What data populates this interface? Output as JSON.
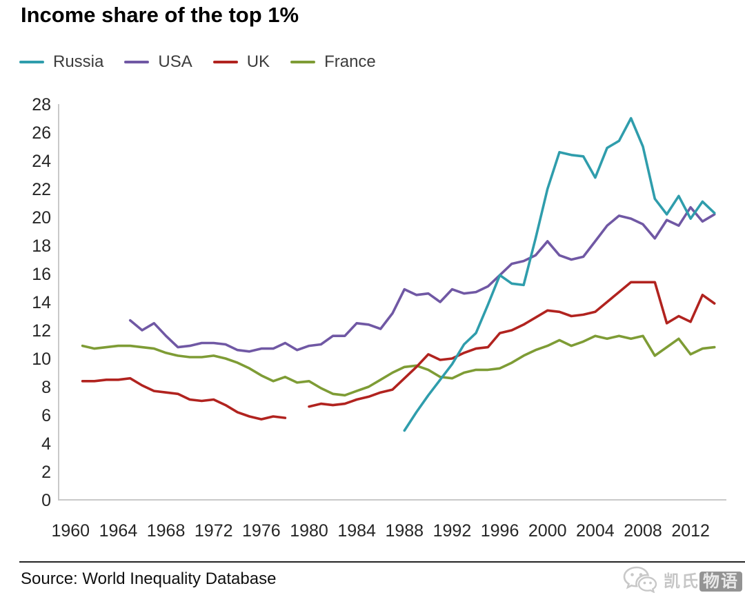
{
  "page": {
    "title": "Income share of the top 1%",
    "source_line": "Source: World Inequality Database",
    "watermark": {
      "icon": "wechat-icon",
      "text_left": "凯氏",
      "text_right": "物语"
    }
  },
  "legend": {
    "items": [
      {
        "label": "Russia",
        "color": "#2f9dac"
      },
      {
        "label": "USA",
        "color": "#7058a4"
      },
      {
        "label": "UK",
        "color": "#b1231f"
      },
      {
        "label": "France",
        "color": "#7e9c35"
      }
    ]
  },
  "chart_data": {
    "type": "line",
    "title": "Income share of the top 1%",
    "xlabel": "",
    "ylabel": "",
    "grid": false,
    "legend_position": "top-left",
    "axis_color": "#c9c9c9",
    "tick_color": "#262626",
    "xlim": [
      1959,
      2015
    ],
    "ylim": [
      0,
      28
    ],
    "x_tick_labels": [
      1960,
      1964,
      1968,
      1972,
      1976,
      1980,
      1984,
      1988,
      1992,
      1996,
      2000,
      2004,
      2008,
      2012
    ],
    "y_tick_labels": [
      0,
      2,
      4,
      6,
      8,
      10,
      12,
      14,
      16,
      18,
      20,
      22,
      24,
      26,
      28
    ],
    "series": [
      {
        "name": "Russia",
        "color": "#2f9dac",
        "start_year": 1988,
        "values": [
          4.9,
          6.2,
          7.4,
          8.5,
          9.6,
          11.0,
          11.8,
          13.8,
          15.9,
          15.3,
          15.2,
          18.5,
          22.0,
          24.6,
          24.4,
          24.3,
          22.8,
          24.9,
          25.4,
          27.0,
          25.0,
          21.3,
          20.2,
          21.5,
          19.9,
          21.1,
          20.3
        ]
      },
      {
        "name": "USA",
        "color": "#7058a4",
        "start_year": 1965,
        "values": [
          12.7,
          12.0,
          12.5,
          11.6,
          10.8,
          10.9,
          11.1,
          11.1,
          11.0,
          10.6,
          10.5,
          10.7,
          10.7,
          11.1,
          10.6,
          10.9,
          11.0,
          11.6,
          11.6,
          12.5,
          12.4,
          12.1,
          13.2,
          14.9,
          14.5,
          14.6,
          14.0,
          14.9,
          14.6,
          14.7,
          15.1,
          15.9,
          16.7,
          16.9,
          17.3,
          18.3,
          17.3,
          17.0,
          17.2,
          18.3,
          19.4,
          20.1,
          19.9,
          19.5,
          18.5,
          19.8,
          19.4,
          20.7,
          19.7,
          20.2
        ]
      },
      {
        "name": "UK",
        "color": "#b1231f",
        "start_year": 1961,
        "values": [
          8.4,
          8.4,
          8.5,
          8.5,
          8.6,
          8.1,
          7.7,
          7.6,
          7.5,
          7.1,
          7.0,
          7.1,
          6.7,
          6.2,
          5.9,
          5.7,
          5.9,
          5.8,
          null,
          6.6,
          6.8,
          6.7,
          6.8,
          7.1,
          7.3,
          7.6,
          7.8,
          8.6,
          9.4,
          10.3,
          9.9,
          10.0,
          10.4,
          10.7,
          10.8,
          11.8,
          12.0,
          12.4,
          12.9,
          13.4,
          13.3,
          13.0,
          13.1,
          13.3,
          14.0,
          14.7,
          15.4,
          15.4,
          15.4,
          12.5,
          13.0,
          12.6,
          14.5,
          13.9
        ]
      },
      {
        "name": "France",
        "color": "#7e9c35",
        "start_year": 1961,
        "values": [
          10.9,
          10.7,
          10.8,
          10.9,
          10.9,
          10.8,
          10.7,
          10.4,
          10.2,
          10.1,
          10.1,
          10.2,
          10.0,
          9.7,
          9.3,
          8.8,
          8.4,
          8.7,
          8.3,
          8.4,
          7.9,
          7.5,
          7.4,
          7.7,
          8.0,
          8.5,
          9.0,
          9.4,
          9.5,
          9.2,
          8.7,
          8.6,
          9.0,
          9.2,
          9.2,
          9.3,
          9.7,
          10.2,
          10.6,
          10.9,
          11.3,
          10.9,
          11.2,
          11.6,
          11.4,
          11.6,
          11.4,
          11.6,
          10.2,
          10.8,
          11.4,
          10.3,
          10.7,
          10.8
        ]
      }
    ]
  }
}
